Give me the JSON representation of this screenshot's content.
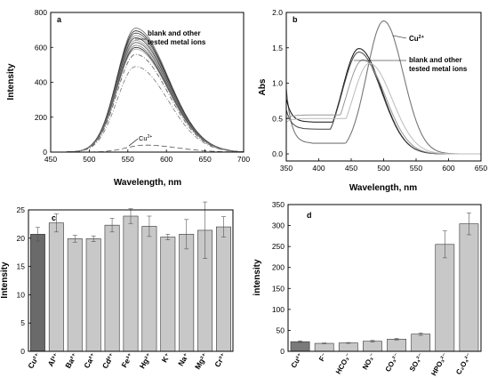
{
  "chart_data": [
    {
      "panel": "a",
      "type": "line",
      "xlabel": "Wavelength, nm",
      "ylabel": "Intensity",
      "xlim": [
        450,
        700
      ],
      "ylim": [
        0,
        800
      ],
      "xticks": [
        450,
        500,
        550,
        600,
        650,
        700
      ],
      "yticks": [
        0,
        200,
        400,
        600,
        800
      ],
      "annotations": [
        "blank and other tested metal ions",
        "Cu²⁺"
      ],
      "peak_wavelength": 560,
      "series": [
        {
          "values_peak": 710,
          "style": "solid",
          "color": "#666666"
        },
        {
          "values_peak": 695,
          "style": "solid",
          "color": "#222222"
        },
        {
          "values_peak": 682,
          "style": "solid",
          "color": "#444444"
        },
        {
          "values_peak": 668,
          "style": "solid",
          "color": "#888888"
        },
        {
          "values_peak": 655,
          "style": "solid",
          "color": "#333333"
        },
        {
          "values_peak": 640,
          "style": "solid",
          "color": "#999999"
        },
        {
          "values_peak": 628,
          "style": "solid",
          "color": "#555555"
        },
        {
          "values_peak": 612,
          "style": "solid",
          "color": "#777777"
        },
        {
          "values_peak": 600,
          "style": "solid",
          "color": "#222222"
        },
        {
          "values_peak": 590,
          "style": "solid",
          "color": "#aaaaaa"
        },
        {
          "values_peak": 560,
          "style": "dashdot",
          "color": "#555555"
        },
        {
          "values_peak": 490,
          "style": "dashdot",
          "color": "#777777"
        },
        {
          "values_peak": 40,
          "style": "dashed",
          "color": "#555555"
        }
      ]
    },
    {
      "panel": "b",
      "type": "line",
      "xlabel": "Wavelength, nm",
      "ylabel": "Abs",
      "xlim": [
        350,
        650
      ],
      "ylim": [
        -0.1,
        2.0
      ],
      "xticks": [
        350,
        400,
        450,
        500,
        550,
        600,
        650
      ],
      "yticks": [
        0.0,
        0.5,
        1.0,
        1.5,
        2.0
      ],
      "annotations": [
        "Cu²⁺",
        "blank and other tested metal ions"
      ],
      "series": [
        {
          "name": "Cu²⁺",
          "peak_x": 500,
          "peak_y": 1.88,
          "color": "#777777"
        },
        {
          "peak_x": 462,
          "peak_y": 1.49,
          "color": "#111111"
        },
        {
          "peak_x": 462,
          "peak_y": 1.44,
          "color": "#444444"
        },
        {
          "peak_x": 468,
          "peak_y": 1.33,
          "color": "#999999"
        },
        {
          "peak_x": 478,
          "peak_y": 1.28,
          "color": "#bbbbbb"
        }
      ]
    },
    {
      "panel": "c",
      "type": "bar",
      "ylabel": "Intensity",
      "ylim": [
        0,
        25
      ],
      "yticks": [
        0,
        5,
        10,
        15,
        20,
        25
      ],
      "categories": [
        "Cu²⁺",
        "Al³⁺",
        "Ba²⁺",
        "Ca²⁺",
        "Cd²⁺",
        "Fe³⁺",
        "Hg²⁺",
        "K⁺",
        "Na⁺",
        "Mg²⁺",
        "Cr³⁺"
      ],
      "values": [
        20.7,
        22.7,
        19.9,
        19.9,
        22.3,
        23.9,
        22.1,
        20.2,
        20.7,
        21.4,
        22.0
      ],
      "errors": [
        1.2,
        1.6,
        0.6,
        0.5,
        1.2,
        1.3,
        1.8,
        0.5,
        2.6,
        5.0,
        1.8
      ],
      "colors": [
        "#6a6a6a",
        "#c8c8c8"
      ]
    },
    {
      "panel": "d",
      "type": "bar",
      "ylabel": "intensity",
      "ylim": [
        0,
        350
      ],
      "yticks": [
        0,
        50,
        100,
        150,
        200,
        250,
        300,
        350
      ],
      "categories": [
        "Cu²⁺",
        "F⁻",
        "HCO₃⁻",
        "NO₃⁻",
        "CO₃²⁻",
        "SO₄²⁻",
        "HPO₃²⁻",
        "C₂O₄²⁻"
      ],
      "values": [
        23,
        19,
        20,
        24,
        29,
        41,
        255,
        304
      ],
      "errors": [
        2,
        1,
        1,
        2,
        2,
        3,
        32,
        26
      ],
      "colors": [
        "#7a7a7a",
        "#c8c8c8"
      ]
    }
  ]
}
